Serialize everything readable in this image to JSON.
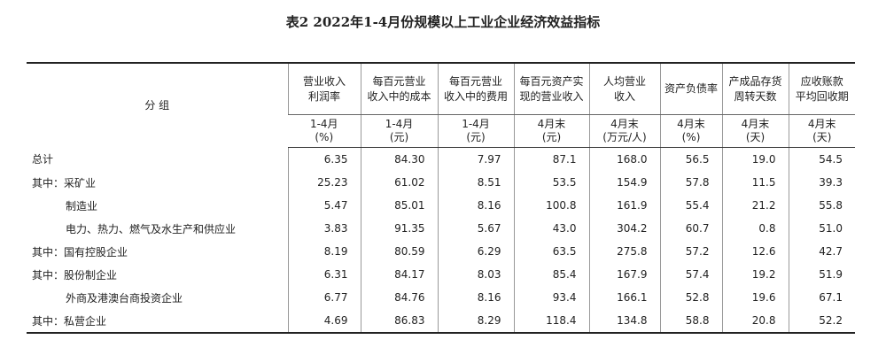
{
  "title": "表2  2022年1-4月份规模以上工业企业经济效益指标",
  "table": {
    "group_header": "分  组",
    "columns": [
      {
        "name": [
          "营业收入",
          "利润率"
        ],
        "unit": [
          "1-4月",
          "(%)"
        ]
      },
      {
        "name": [
          "每百元营业",
          "收入中的成本"
        ],
        "unit": [
          "1-4月",
          "(元)"
        ]
      },
      {
        "name": [
          "每百元营业",
          "收入中的费用"
        ],
        "unit": [
          "1-4月",
          "(元)"
        ]
      },
      {
        "name": [
          "每百元资产实",
          "现的营业收入"
        ],
        "unit": [
          "4月末",
          "(元)"
        ]
      },
      {
        "name": [
          "人均营业",
          "收入"
        ],
        "unit": [
          "4月末",
          "(万元/人)"
        ]
      },
      {
        "name": [
          "资产负债率"
        ],
        "unit": [
          "4月末",
          "(%)"
        ]
      },
      {
        "name": [
          "产成品存货",
          "周转天数"
        ],
        "unit": [
          "4月末",
          "(天)"
        ]
      },
      {
        "name": [
          "应收账款",
          "平均回收期"
        ],
        "unit": [
          "4月末",
          "(天)"
        ]
      }
    ],
    "rows": [
      [
        "总计",
        "6.35",
        "84.30",
        "7.97",
        "87.1",
        "168.0",
        "56.5",
        "19.0",
        "54.5"
      ],
      [
        "其中：采矿业",
        "25.23",
        "61.02",
        "8.51",
        "53.5",
        "154.9",
        "57.8",
        "11.5",
        "39.3"
      ],
      [
        "制造业",
        "5.47",
        "85.01",
        "8.16",
        "100.8",
        "161.9",
        "55.4",
        "21.2",
        "55.8"
      ],
      [
        "电力、热力、燃气及水生产和供应业",
        "3.83",
        "91.35",
        "5.67",
        "43.0",
        "304.2",
        "60.7",
        "0.8",
        "51.0"
      ],
      [
        "其中：国有控股企业",
        "8.19",
        "80.59",
        "6.29",
        "63.5",
        "275.8",
        "57.2",
        "12.6",
        "42.7"
      ],
      [
        "其中：股份制企业",
        "6.31",
        "84.17",
        "8.03",
        "85.4",
        "167.9",
        "57.4",
        "19.2",
        "51.9"
      ],
      [
        "外商及港澳台商投资企业",
        "6.77",
        "84.76",
        "8.16",
        "93.4",
        "166.1",
        "52.8",
        "19.6",
        "67.1"
      ],
      [
        "其中：私营企业",
        "4.69",
        "86.83",
        "8.29",
        "118.4",
        "134.8",
        "58.8",
        "20.8",
        "52.2"
      ]
    ]
  }
}
